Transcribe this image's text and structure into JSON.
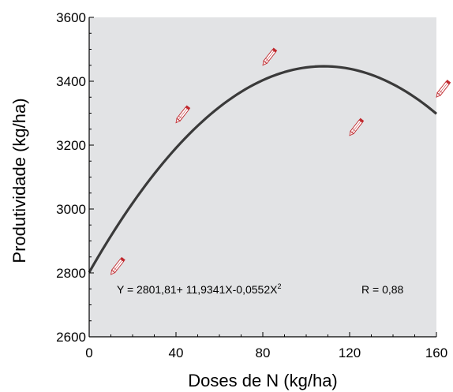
{
  "chart_data": {
    "type": "scatter",
    "xlabel": "Doses de N (kg/ha)",
    "ylabel": "Produtividade (kg/ha)",
    "xlim": [
      0,
      160
    ],
    "ylim": [
      2600,
      3600
    ],
    "x_ticks": [
      "0",
      "40",
      "80",
      "120",
      "160"
    ],
    "y_ticks": [
      "2600",
      "2800",
      "3000",
      "3200",
      "3400",
      "3600"
    ],
    "grid": false,
    "background_color": "#e2e3e5",
    "series": [
      {
        "marker": "pencil-icon",
        "color": "#c0282d",
        "x": [
          10,
          40,
          80,
          120,
          160
        ],
        "y": [
          2795,
          3270,
          3450,
          3230,
          3350
        ]
      }
    ],
    "fit": {
      "model": "quadratic",
      "coefficients": [
        2801.81,
        11.9341,
        -0.0552
      ],
      "color": "#3a3a3a"
    },
    "annotation": {
      "equation_prefix": "Y =  2801,81+ 11,9341X-0,0552X",
      "equation_exponent": "2",
      "r_label": "R =  0,88"
    }
  }
}
